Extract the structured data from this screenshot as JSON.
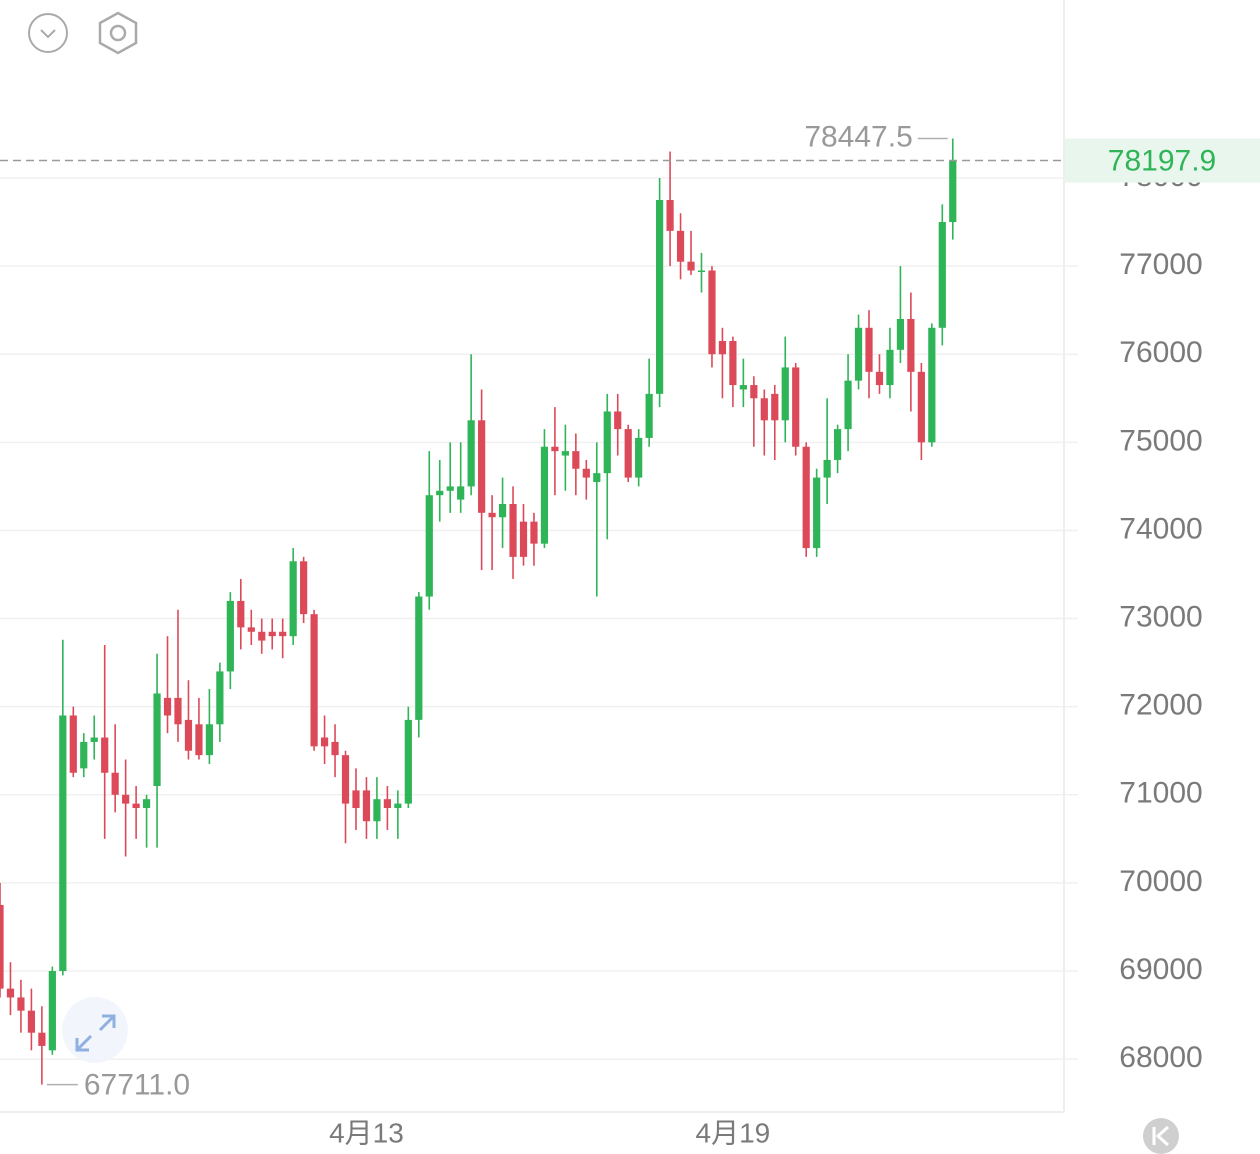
{
  "chart_data": {
    "type": "candlestick",
    "categories": [
      null,
      null,
      null,
      null,
      null,
      null,
      null,
      null,
      null,
      null,
      null,
      null,
      null,
      null,
      null,
      null,
      null,
      null,
      null,
      null,
      null,
      null,
      null,
      null,
      null,
      null,
      null,
      null,
      null,
      null,
      null,
      null,
      null,
      null,
      null,
      "4月13",
      null,
      null,
      null,
      null,
      null,
      null,
      null,
      null,
      null,
      null,
      null,
      null,
      null,
      null,
      null,
      null,
      null,
      null,
      null,
      null,
      null,
      null,
      null,
      null,
      null,
      null,
      null,
      null,
      null,
      null,
      null,
      null,
      null,
      null,
      "4月19",
      null,
      null,
      null,
      null,
      null,
      null,
      null,
      null,
      null,
      null,
      null,
      null,
      null,
      null,
      null,
      null,
      null,
      null,
      null,
      null,
      null
    ],
    "open": [
      69750,
      68800,
      68700,
      68550,
      68300,
      68100,
      69000,
      71900,
      71300,
      71600,
      71650,
      71250,
      71000,
      70900,
      70850,
      71100,
      72100,
      72100,
      71850,
      71800,
      71450,
      71800,
      72400,
      73200,
      72900,
      72850,
      72850,
      72850,
      72800,
      73650,
      73050,
      71650,
      71600,
      71450,
      71050,
      71050,
      70700,
      70950,
      70850,
      70900,
      71850,
      73250,
      74400,
      74450,
      74350,
      74500,
      75250,
      74200,
      74150,
      74300,
      74100,
      74100,
      73850,
      74950,
      74850,
      74900,
      74700,
      74550,
      74650,
      75350,
      75150,
      74600,
      75050,
      75550,
      77750,
      77400,
      77050,
      76950,
      76950,
      76150,
      76150,
      75600,
      75650,
      75500,
      75550,
      75250,
      75850,
      74950,
      73800,
      74600,
      74800,
      75150,
      75700,
      76300,
      75800,
      75650,
      76050,
      76400,
      75800,
      75000,
      76300,
      77500
    ],
    "high": [
      70000,
      69100,
      68900,
      68800,
      68600,
      69050,
      72760,
      72000,
      71700,
      71900,
      72700,
      71800,
      71400,
      71100,
      71000,
      72600,
      72800,
      73100,
      72300,
      72100,
      72200,
      72500,
      73300,
      73450,
      73100,
      73000,
      73000,
      73000,
      73800,
      73700,
      73100,
      71900,
      71800,
      71500,
      71300,
      71200,
      71200,
      71100,
      71050,
      72000,
      73300,
      74900,
      74800,
      75000,
      75000,
      76000,
      75600,
      74400,
      74600,
      74500,
      74300,
      74200,
      75150,
      75400,
      75200,
      75100,
      74800,
      75000,
      75550,
      75550,
      75200,
      75150,
      75950,
      78000,
      78300,
      77600,
      77400,
      77150,
      77000,
      76300,
      76200,
      75950,
      75750,
      75600,
      75650,
      76200,
      75900,
      75000,
      74700,
      75500,
      75200,
      76000,
      76450,
      76500,
      76000,
      76300,
      77000,
      76700,
      75900,
      76350,
      77700,
      78447.5
    ],
    "low": [
      68700,
      68500,
      68300,
      68100,
      67711,
      68050,
      68950,
      71200,
      71200,
      71400,
      70500,
      70800,
      70300,
      70500,
      70400,
      70400,
      71700,
      71600,
      71400,
      71400,
      71350,
      71600,
      72200,
      72650,
      72700,
      72600,
      72650,
      72550,
      72700,
      72950,
      71500,
      71350,
      71200,
      70450,
      70600,
      70500,
      70500,
      70600,
      70500,
      70850,
      71650,
      73100,
      74100,
      74200,
      74200,
      74400,
      73550,
      73550,
      73800,
      73450,
      73600,
      73600,
      73800,
      74400,
      74450,
      74400,
      74350,
      73250,
      73900,
      74850,
      74550,
      74500,
      74950,
      75400,
      77000,
      76850,
      76900,
      76700,
      75850,
      75500,
      75400,
      75400,
      74950,
      74850,
      74800,
      75000,
      74850,
      73700,
      73700,
      74300,
      74650,
      74900,
      75600,
      75500,
      75550,
      75500,
      75900,
      75350,
      74800,
      74950,
      76100,
      77300
    ],
    "close": [
      68800,
      68700,
      68550,
      68300,
      68150,
      69000,
      71900,
      71250,
      71600,
      71650,
      71250,
      71000,
      70900,
      70850,
      70950,
      72150,
      71900,
      71800,
      71500,
      71450,
      71800,
      72400,
      73200,
      72900,
      72850,
      72750,
      72800,
      72800,
      73650,
      73050,
      71550,
      71550,
      71450,
      70900,
      70850,
      70700,
      70950,
      70850,
      70900,
      71850,
      73250,
      74400,
      74450,
      74500,
      74500,
      75250,
      74200,
      74150,
      74300,
      73700,
      73700,
      73850,
      74950,
      74900,
      74900,
      74700,
      74600,
      74650,
      75350,
      75150,
      74600,
      75050,
      75550,
      77750,
      77400,
      77050,
      76950,
      76950,
      76000,
      76000,
      75650,
      75650,
      75500,
      75250,
      75250,
      75850,
      74950,
      73800,
      74600,
      74800,
      75150,
      75700,
      76300,
      75800,
      75650,
      76050,
      76400,
      75800,
      75000,
      76300,
      77500,
      78197.9
    ],
    "up_color": "#2fb457",
    "down_color": "#dc4a5a",
    "ylim": [
      67400,
      80020
    ],
    "yticks": [
      68000,
      69000,
      70000,
      71000,
      72000,
      73000,
      74000,
      75000,
      76000,
      77000,
      78000
    ],
    "grid": true,
    "max_label": 78447.5,
    "min_label": {
      "value": 67711,
      "label": "67711.0"
    },
    "last_price": 78197.9
  }
}
